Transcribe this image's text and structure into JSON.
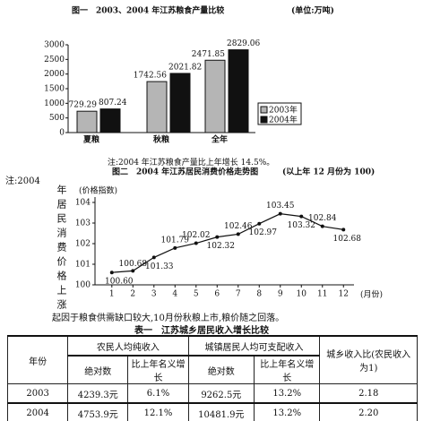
{
  "chart_data": [
    {
      "type": "bar",
      "title": "图一　2003、2004 年江苏粮食产量比较",
      "subtitle": "(单位:万吨)",
      "categories": [
        "夏粮",
        "秋粮",
        "全年"
      ],
      "series": [
        {
          "name": "2003年",
          "color": "#b5b5b5",
          "values": [
            729.29,
            1742.56,
            2471.85
          ]
        },
        {
          "name": "2004年",
          "color": "#111111",
          "values": [
            807.24,
            2021.82,
            2829.06
          ]
        }
      ],
      "ylim": [
        0,
        3000
      ],
      "yticks": [
        0,
        500,
        1000,
        1500,
        2000,
        2500,
        3000
      ],
      "legend": "right"
    },
    {
      "type": "line",
      "title": "图二　2004 年江苏居民消费价格走势图",
      "subtitle": "(以上年 12 月份为 100)",
      "y_label": "(价格指数)",
      "x_label": "(月份)",
      "color": "#111111",
      "x": [
        1,
        2,
        3,
        4,
        5,
        6,
        7,
        8,
        9,
        10,
        11,
        12
      ],
      "values": [
        100.6,
        100.68,
        101.33,
        101.79,
        102.02,
        102.32,
        102.46,
        102.97,
        103.45,
        103.32,
        102.84,
        102.68
      ],
      "value_labels": [
        "100.60",
        "100.68",
        "101.33",
        "101.79",
        "102.02",
        "102.32",
        "102.46",
        "102.97",
        "103.45",
        "103.32",
        "102.84",
        "102.68"
      ],
      "xlim": [
        0.2,
        12.5
      ],
      "xticks": [
        1,
        2,
        3,
        4,
        5,
        6,
        7,
        8,
        9,
        10,
        11,
        12
      ],
      "ylim": [
        100,
        104
      ],
      "yticks": [
        100,
        101,
        102,
        103,
        104
      ]
    }
  ],
  "notes": {
    "note1": "注:2004 年江苏粮食产量比上年增长 14.5%。",
    "note2_lead": "注:2004",
    "note2_vertical": "年居民消费价格上涨",
    "note2_tail": "起因于粮食供需缺口较大,10月份秋粮上市,粮价随之回落。"
  },
  "table": {
    "title": "表一　江苏城乡居民收入增长比较",
    "header": {
      "year": "年份",
      "rural": "农民人均纯收入",
      "urban": "城镇居民人均可支配收入",
      "ratio": "城乡收入比(农民收入为1)",
      "abs1": "绝对数",
      "growth1": "比上年名义增长",
      "abs2": "绝对数",
      "growth2": "比上年名义增长"
    },
    "rows": [
      [
        "2003",
        "4239.3元",
        "6.1%",
        "9262.5元",
        "13.2%",
        "2.18"
      ],
      [
        "2004",
        "4753.9元",
        "12.1%",
        "10481.9元",
        "13.2%",
        "2.20"
      ]
    ]
  }
}
